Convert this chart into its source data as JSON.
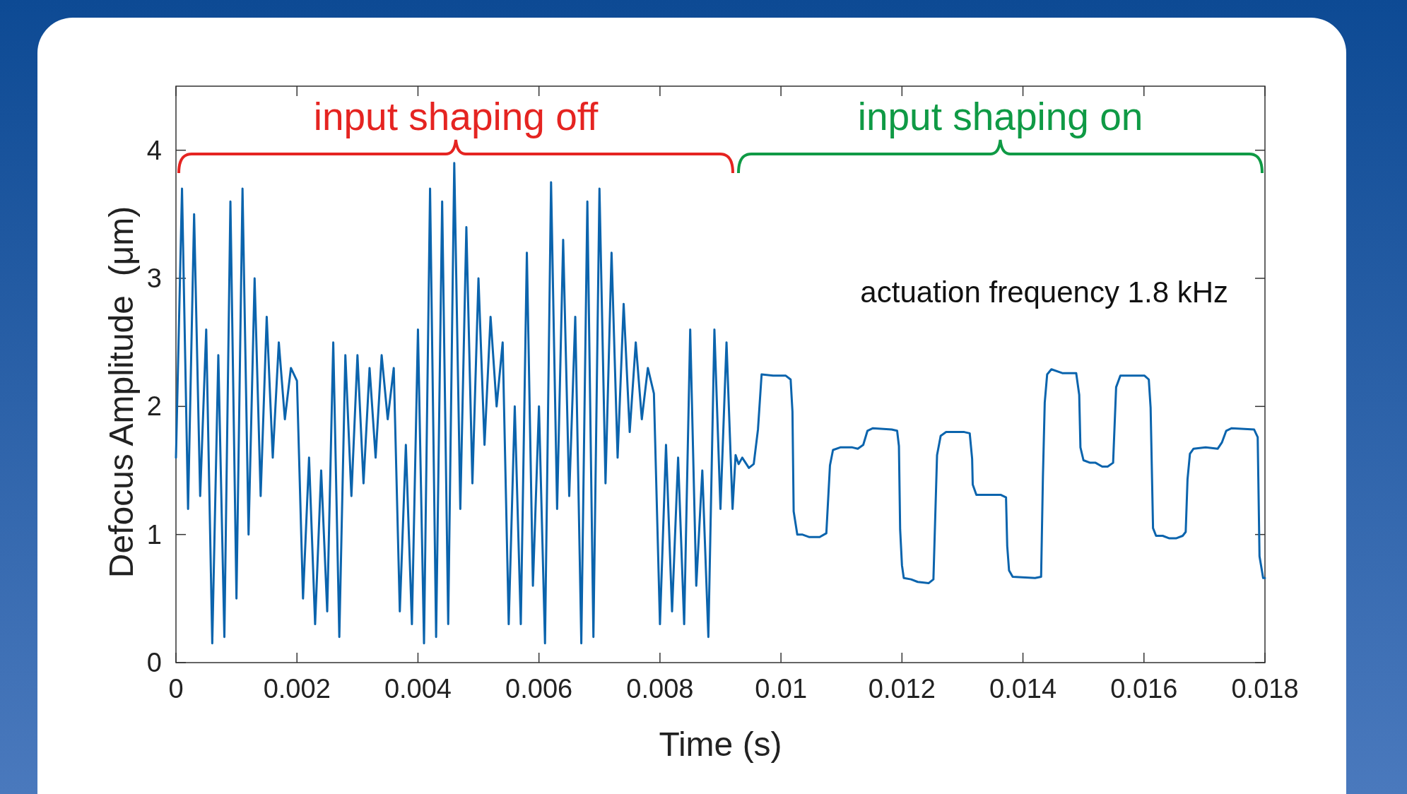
{
  "chart_data": {
    "type": "line",
    "xlabel": "Time (s)",
    "ylabel": "Defocus Amplitude  (μm)",
    "xlim": [
      0,
      0.018
    ],
    "ylim": [
      0,
      4.5
    ],
    "xticks": [
      0,
      0.002,
      0.004,
      0.006,
      0.008,
      0.01,
      0.012,
      0.014,
      0.016,
      0.018
    ],
    "yticks": [
      0,
      1,
      2,
      3,
      4
    ],
    "grid": false,
    "annotations": [
      "input shaping off",
      "input shaping on",
      "actuation frequency 1.8 kHz"
    ],
    "series": [
      {
        "color": "#0b64ad",
        "x": [
          0,
          0.0001,
          0.0002,
          0.0003,
          0.0004,
          0.0005,
          0.0006,
          0.0007,
          0.0008,
          0.0009,
          0.001,
          0.0011,
          0.0012,
          0.0013,
          0.0014,
          0.0015,
          0.0016,
          0.0017,
          0.0018,
          0.0019,
          0.002,
          0.0021,
          0.0022,
          0.0023,
          0.0024,
          0.0025,
          0.0026,
          0.0027,
          0.0028,
          0.0029,
          0.003,
          0.0031,
          0.0032,
          0.0033,
          0.0034,
          0.0035,
          0.0036,
          0.0037,
          0.0038,
          0.0039,
          0.004,
          0.0041,
          0.0042,
          0.0043,
          0.0044,
          0.0045,
          0.0046,
          0.0047,
          0.0048,
          0.0049,
          0.005,
          0.0051,
          0.0052,
          0.0053,
          0.0054,
          0.0055,
          0.0056,
          0.0057,
          0.0058,
          0.0059,
          0.006,
          0.0061,
          0.0062,
          0.0063,
          0.0064,
          0.0065,
          0.0066,
          0.0067,
          0.0068,
          0.0069,
          0.007,
          0.0071,
          0.0072,
          0.0073,
          0.0074,
          0.0075,
          0.0076,
          0.0077,
          0.0078,
          0.0079,
          0.008,
          0.0081,
          0.0082,
          0.0083,
          0.0084,
          0.0085,
          0.0086,
          0.0087,
          0.0088,
          0.0089,
          0.009,
          0.0091,
          0.0092,
          0.00925,
          0.0093,
          0.00936,
          0.00947,
          0.00955,
          0.00962,
          0.00968,
          0.00987,
          0.01008,
          0.01016,
          0.01019,
          0.01021,
          0.01027,
          0.01035,
          0.01047,
          0.01064,
          0.01075,
          0.01081,
          0.01086,
          0.01098,
          0.01118,
          0.01127,
          0.01136,
          0.01143,
          0.01152,
          0.01183,
          0.01192,
          0.01195,
          0.01197,
          0.012,
          0.01203,
          0.01215,
          0.01226,
          0.01244,
          0.01252,
          0.01258,
          0.01264,
          0.01273,
          0.01303,
          0.01312,
          0.01316,
          0.01317,
          0.01323,
          0.01363,
          0.01372,
          0.01374,
          0.01377,
          0.01383,
          0.0142,
          0.0143,
          0.01433,
          0.01436,
          0.0144,
          0.01447,
          0.01465,
          0.0148,
          0.01488,
          0.01493,
          0.01495,
          0.015,
          0.01511,
          0.0152,
          0.01531,
          0.0154,
          0.01549,
          0.01554,
          0.01561,
          0.0158,
          0.01601,
          0.01608,
          0.01611,
          0.01615,
          0.0162,
          0.01631,
          0.01642,
          0.01653,
          0.01664,
          0.01669,
          0.01672,
          0.01676,
          0.01682,
          0.01702,
          0.01722,
          0.01729,
          0.01736,
          0.01745,
          0.01782,
          0.01788,
          0.01789,
          0.01791,
          0.01797,
          0.018
        ],
        "values": [
          1.6,
          3.7,
          1.2,
          3.5,
          1.3,
          2.6,
          0.15,
          2.4,
          0.2,
          3.6,
          0.5,
          3.7,
          1.0,
          3.0,
          1.3,
          2.7,
          1.6,
          2.5,
          1.9,
          2.3,
          2.2,
          0.5,
          1.6,
          0.3,
          1.5,
          0.4,
          2.5,
          0.2,
          2.4,
          1.3,
          2.4,
          1.4,
          2.3,
          1.6,
          2.4,
          1.9,
          2.3,
          0.4,
          1.7,
          0.3,
          2.6,
          0.15,
          3.7,
          0.2,
          3.6,
          0.3,
          3.9,
          1.2,
          3.4,
          1.4,
          3.0,
          1.7,
          2.7,
          2.0,
          2.5,
          0.3,
          2.0,
          0.3,
          3.2,
          0.6,
          2.0,
          0.15,
          3.75,
          1.2,
          3.3,
          1.3,
          2.7,
          0.15,
          3.6,
          0.2,
          3.7,
          1.4,
          3.2,
          1.6,
          2.8,
          1.8,
          2.5,
          1.9,
          2.3,
          2.1,
          0.3,
          1.7,
          0.4,
          1.6,
          0.3,
          2.6,
          0.6,
          1.5,
          0.2,
          2.6,
          1.2,
          2.5,
          1.2,
          1.62,
          1.55,
          1.6,
          1.52,
          1.55,
          1.82,
          2.25,
          2.24,
          2.24,
          2.21,
          1.96,
          1.18,
          1.0,
          1.0,
          0.98,
          0.98,
          1.01,
          1.54,
          1.66,
          1.68,
          1.68,
          1.67,
          1.7,
          1.81,
          1.83,
          1.82,
          1.81,
          1.69,
          1.04,
          0.76,
          0.66,
          0.65,
          0.63,
          0.62,
          0.65,
          1.62,
          1.77,
          1.8,
          1.8,
          1.79,
          1.59,
          1.39,
          1.31,
          1.31,
          1.29,
          0.91,
          0.72,
          0.67,
          0.66,
          0.67,
          1.45,
          2.03,
          2.25,
          2.29,
          2.26,
          2.26,
          2.26,
          2.09,
          1.68,
          1.58,
          1.56,
          1.56,
          1.53,
          1.53,
          1.56,
          2.15,
          2.24,
          2.24,
          2.24,
          2.21,
          1.99,
          1.05,
          0.99,
          0.99,
          0.97,
          0.97,
          0.99,
          1.02,
          1.43,
          1.63,
          1.67,
          1.68,
          1.67,
          1.72,
          1.81,
          1.83,
          1.82,
          1.76,
          1.45,
          0.83,
          0.66,
          0.66
        ]
      }
    ]
  }
}
